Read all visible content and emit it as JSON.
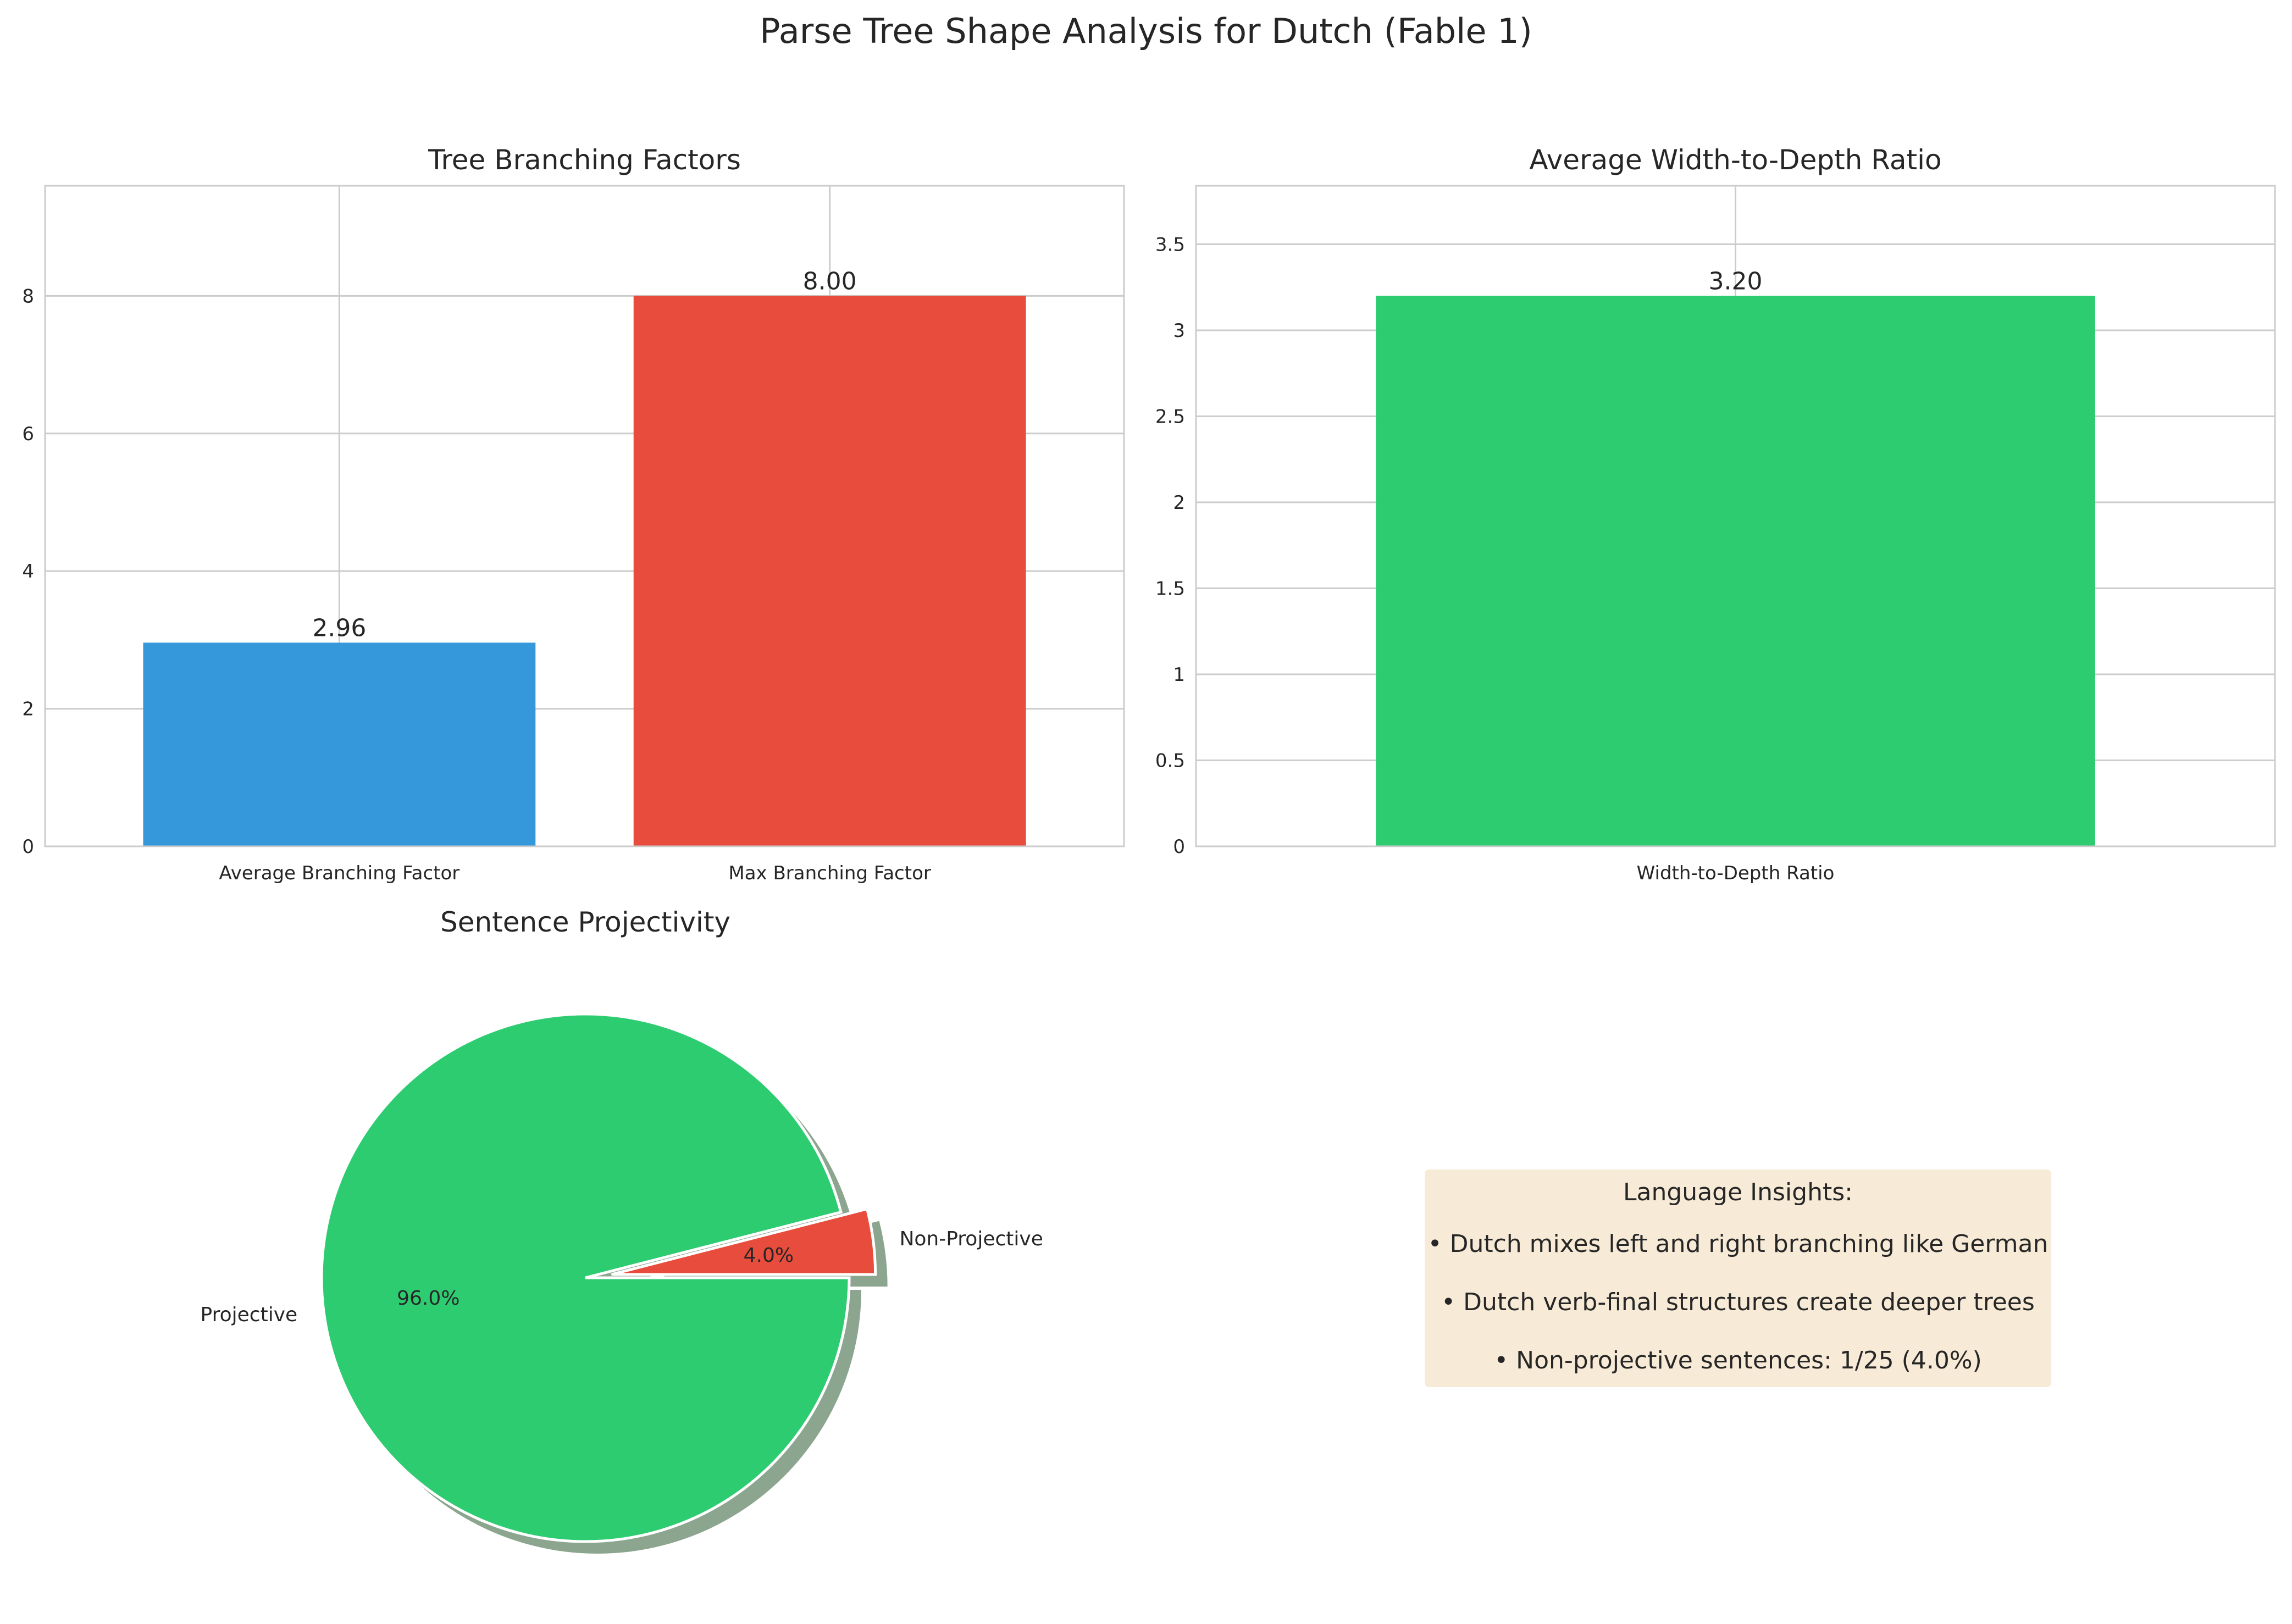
{
  "figure": {
    "title": "Parse Tree Shape Analysis for Dutch (Fable 1)"
  },
  "chart_data": [
    {
      "type": "bar",
      "title": "Tree Branching Factors",
      "categories": [
        "Average Branching Factor",
        "Max Branching Factor"
      ],
      "values": [
        2.96,
        8.0
      ],
      "value_labels": [
        "2.96",
        "8.00"
      ],
      "colors": [
        "#3498db",
        "#e74c3c"
      ],
      "ylim": [
        0,
        9.6
      ],
      "yticks": [
        0,
        2,
        4,
        6,
        8
      ],
      "grid": true,
      "xlabel": "",
      "ylabel": ""
    },
    {
      "type": "bar",
      "title": "Average Width-to-Depth Ratio",
      "categories": [
        "Width-to-Depth Ratio"
      ],
      "values": [
        3.2
      ],
      "value_labels": [
        "3.20"
      ],
      "colors": [
        "#2ecc71"
      ],
      "ylim": [
        0,
        3.84
      ],
      "yticks": [
        0.0,
        0.5,
        1.0,
        1.5,
        2.0,
        2.5,
        3.0,
        3.5
      ],
      "grid": true,
      "xlabel": "",
      "ylabel": ""
    },
    {
      "type": "pie",
      "title": "Sentence Projectivity",
      "labels": [
        "Projective",
        "Non-Projective"
      ],
      "values": [
        96.0,
        4.0
      ],
      "pct_labels": [
        "96.0%",
        "4.0%"
      ],
      "colors": [
        "#2ecc71",
        "#e74c3c"
      ],
      "exploded": [
        false,
        true
      ],
      "shadow": true
    }
  ],
  "insights": {
    "heading": "Language Insights:",
    "lines": [
      "• Dutch mixes left and right branching like German",
      "• Dutch verb-final structures create deeper trees",
      "• Non-projective sentences: 1/25 (4.0%)"
    ],
    "background": "#f7ead6"
  }
}
